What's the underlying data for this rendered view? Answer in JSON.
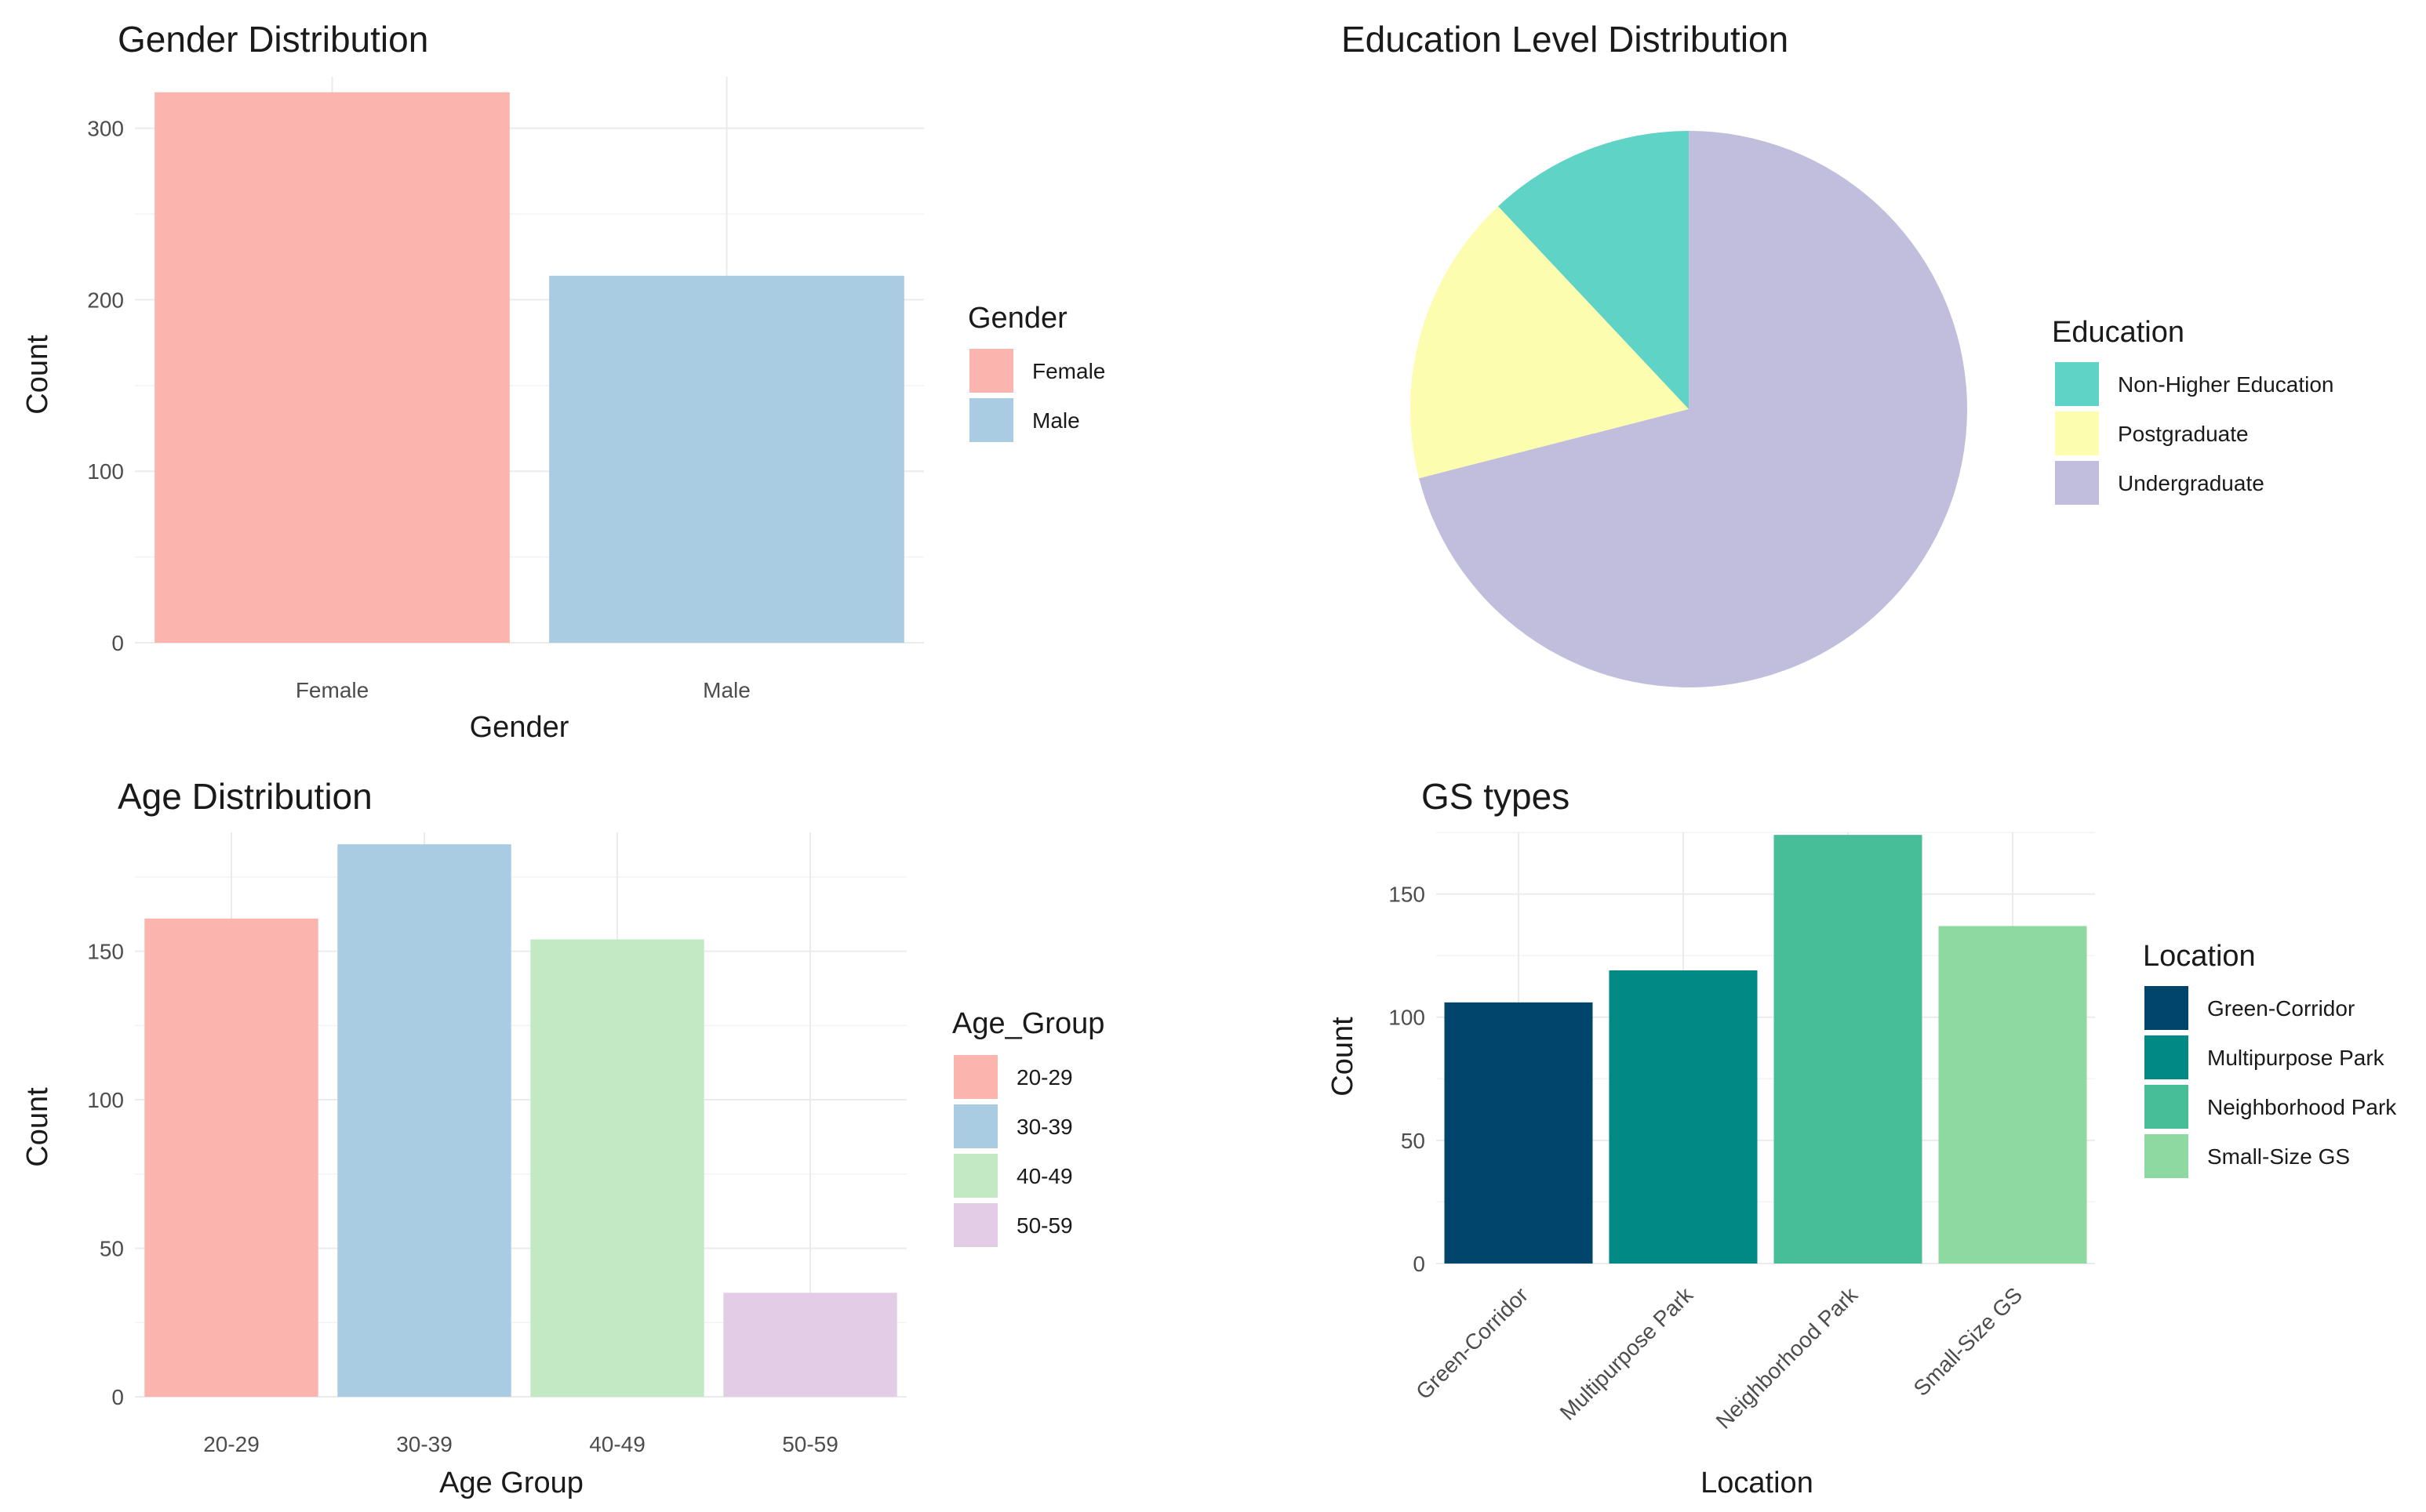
{
  "chart_data": [
    {
      "id": "gender",
      "type": "bar",
      "title": "Gender Distribution",
      "xlabel": "Gender",
      "ylabel": "Count",
      "categories": [
        "Female",
        "Male"
      ],
      "values": [
        321,
        214
      ],
      "colors": [
        "#FBB4AE",
        "#A9CCE3"
      ],
      "ylim": [
        0,
        330
      ],
      "yticks": [
        0,
        100,
        200,
        300
      ],
      "legend": {
        "title": "Gender",
        "labels": [
          "Female",
          "Male"
        ],
        "position": "right"
      },
      "grid": true
    },
    {
      "id": "education",
      "type": "pie",
      "title": "Education Level Distribution",
      "categories": [
        "Non-Higher Education",
        "Postgraduate",
        "Undergraduate"
      ],
      "values": [
        12,
        17,
        71
      ],
      "colors": [
        "#5FD3C5",
        "#FDFDB0",
        "#C1BDDC"
      ],
      "legend": {
        "title": "Education",
        "labels": [
          "Non-Higher Education",
          "Postgraduate",
          "Undergraduate"
        ],
        "position": "right"
      }
    },
    {
      "id": "age",
      "type": "bar",
      "title": "Age Distribution",
      "xlabel": "Age Group",
      "ylabel": "Count",
      "categories": [
        "20-29",
        "30-39",
        "40-49",
        "50-59"
      ],
      "values": [
        161,
        186,
        154,
        35
      ],
      "colors": [
        "#FBB4AE",
        "#A9CCE3",
        "#C2E9C4",
        "#E3CCE6"
      ],
      "ylim": [
        0,
        190
      ],
      "yticks": [
        0,
        50,
        100,
        150
      ],
      "legend": {
        "title": "Age_Group",
        "labels": [
          "20-29",
          "30-39",
          "40-49",
          "50-59"
        ],
        "position": "right"
      },
      "grid": true
    },
    {
      "id": "gstypes",
      "type": "bar",
      "title": "GS types",
      "xlabel": "Location",
      "ylabel": "Count",
      "categories": [
        "Green-Corridor",
        "Multipurpose Park",
        "Neighborhood Park",
        "Small-Size GS"
      ],
      "values": [
        106,
        119,
        174,
        137
      ],
      "colors": [
        "#02456C",
        "#008985",
        "#47BE97",
        "#8ED9A2"
      ],
      "ylim": [
        0,
        175
      ],
      "yticks": [
        0,
        50,
        100,
        150
      ],
      "rotate_x_labels": true,
      "legend": {
        "title": "Location",
        "labels": [
          "Green-Corridor",
          "Multipurpose Park",
          "Neighborhood Park",
          "Small-Size GS"
        ],
        "position": "right"
      },
      "grid": true
    }
  ]
}
